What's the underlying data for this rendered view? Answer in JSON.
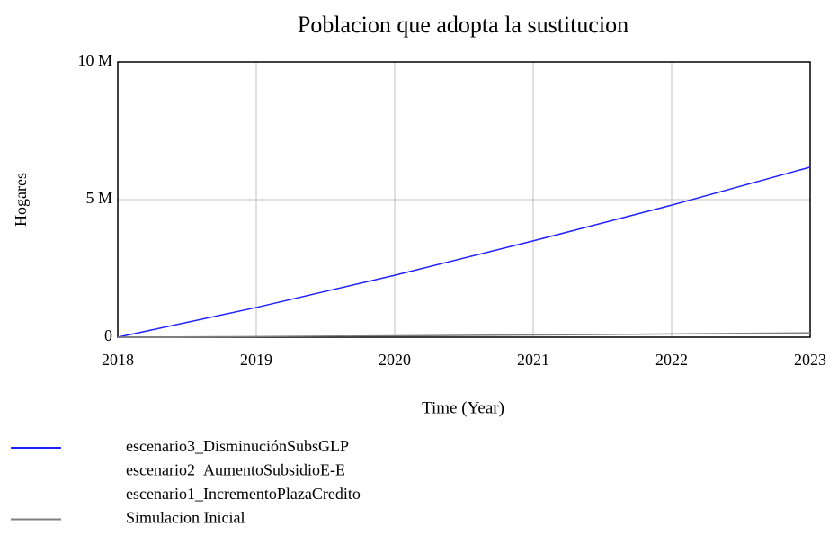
{
  "chart_data": {
    "type": "line",
    "title": "Poblacion que adopta la sustitucion",
    "ylabel": "Hogares",
    "xlabel": "Time (Year)",
    "x": [
      2018,
      2019,
      2020,
      2021,
      2022,
      2023
    ],
    "xlim": [
      2018,
      2023
    ],
    "xticks": [
      2018,
      2019,
      2020,
      2021,
      2022,
      2023
    ],
    "ylim": [
      0,
      10000000
    ],
    "yticks": [
      0,
      {
        "value": 5000000,
        "label": "5 M"
      },
      {
        "value": 10000000,
        "label": "10 M"
      }
    ],
    "grid": true,
    "series": [
      {
        "name": "escenario3_DisminuciónSubsGLP",
        "color": "#2020ff",
        "values": [
          0,
          1080000,
          2250000,
          3500000,
          4800000,
          6180000
        ]
      },
      {
        "name": "escenario2_AumentoSubsidioE-E",
        "color": null,
        "values": [
          null,
          null,
          null,
          null,
          null,
          null
        ]
      },
      {
        "name": "escenario1_IncrementoPlazaCredito",
        "color": null,
        "values": [
          null,
          null,
          null,
          null,
          null,
          null
        ]
      },
      {
        "name": "Simulacion Inicial",
        "color": "#808080",
        "values": [
          0,
          20000,
          50000,
          80000,
          120000,
          160000
        ]
      }
    ]
  }
}
